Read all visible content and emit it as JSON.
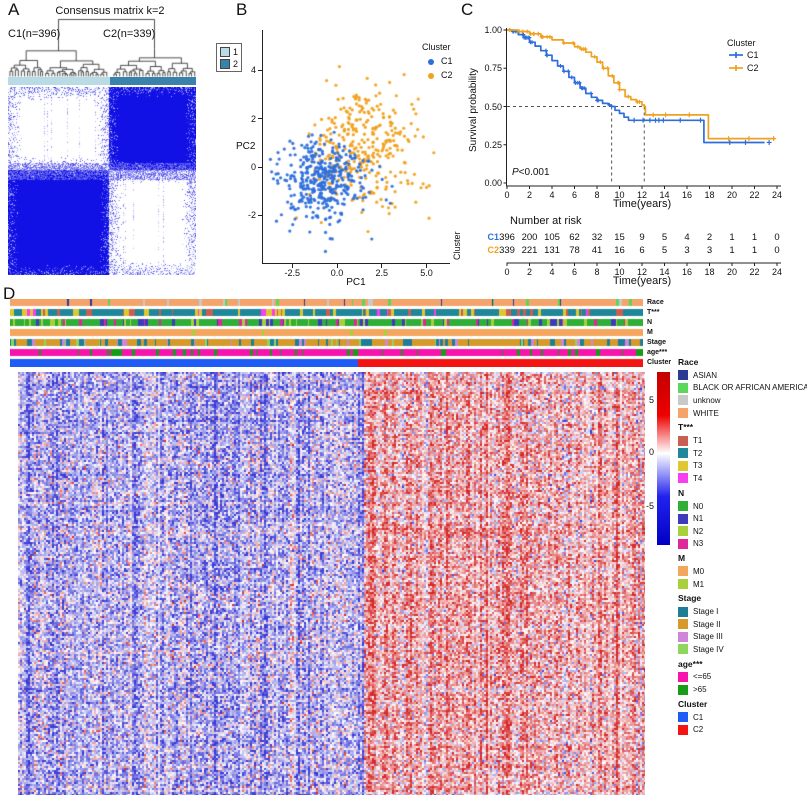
{
  "panelA": {
    "letter": "A",
    "title": "Consensus matrix k=2",
    "c1_label": "C1(n=396)",
    "c2_label": "C2(n=339)",
    "legend_items": [
      {
        "label": "1",
        "color": "#b8dbe5"
      },
      {
        "label": "2",
        "color": "#3a81ac"
      }
    ]
  },
  "panelB": {
    "letter": "B"
  },
  "panelC": {
    "letter": "C"
  },
  "panelD": {
    "letter": "D"
  },
  "chart_data": [
    {
      "id": "consensus_matrix",
      "type": "heatmap",
      "title": "Consensus matrix k=2",
      "k": 2,
      "clusters": [
        {
          "name": "C1",
          "n": 396,
          "bar_color": "#b8dbe5"
        },
        {
          "name": "C2",
          "n": 339,
          "bar_color": "#3a81ac"
        }
      ],
      "legend_entries": [
        "1",
        "2"
      ],
      "consensus_color": "#1111e6",
      "layout_note": "blue consensus blocks on anti-diagonal (C2 rows top-right, C1 rows bottom-left), white elsewhere, speckled block borders"
    },
    {
      "id": "pca_scatter",
      "type": "scatter",
      "xlabel": "PC1",
      "ylabel": "PC2",
      "xlim": [
        -4.2,
        6.3
      ],
      "ylim": [
        -3.9,
        5.5
      ],
      "xticks": [
        -2.5,
        0.0,
        2.5,
        5.0
      ],
      "xtick_labels": [
        "-2.5",
        "0.0",
        "2.5",
        "5.0"
      ],
      "yticks": [
        -2,
        0,
        2,
        4
      ],
      "ytick_labels": [
        "-2",
        "0",
        "2",
        "4"
      ],
      "legend_title": "Cluster",
      "legend_position": "top-right-inside",
      "series": [
        {
          "name": "C1",
          "color": "#2e6fdb",
          "n": 396,
          "center": [
            -0.9,
            -0.5
          ],
          "sd": [
            1.25,
            0.85
          ]
        },
        {
          "name": "C2",
          "color": "#f0a11e",
          "n": 339,
          "center": [
            1.4,
            0.75
          ],
          "sd": [
            1.55,
            1.3
          ]
        }
      ]
    },
    {
      "id": "km_survival",
      "type": "line",
      "xlabel": "Time(years)",
      "ylabel": "Survival probability",
      "xlim": [
        0,
        24.5
      ],
      "ylim": [
        0,
        1.02
      ],
      "xticks": [
        0,
        2,
        4,
        6,
        8,
        10,
        12,
        14,
        16,
        18,
        20,
        22,
        24
      ],
      "ytick_labels": [
        "1.00",
        "0.75",
        "0.50",
        "0.25",
        "0.00"
      ],
      "yticks": [
        1.0,
        0.75,
        0.5,
        0.25,
        0.0
      ],
      "legend_title": "Cluster",
      "pvalue_italic": "P",
      "pvalue_rest": "<0.001",
      "median_guides": {
        "survival": 0.5,
        "times": [
          9.3,
          12.2
        ]
      },
      "series": [
        {
          "name": "C1",
          "color": "#2e6fdb",
          "steps": [
            [
              0,
              1
            ],
            [
              0.5,
              0.99
            ],
            [
              1,
              0.97
            ],
            [
              1.5,
              0.95
            ],
            [
              2,
              0.92
            ],
            [
              2.5,
              0.895
            ],
            [
              3,
              0.865
            ],
            [
              3.5,
              0.835
            ],
            [
              4,
              0.8
            ],
            [
              4.5,
              0.765
            ],
            [
              5,
              0.73
            ],
            [
              5.5,
              0.69
            ],
            [
              6,
              0.655
            ],
            [
              6.5,
              0.62
            ],
            [
              7,
              0.585
            ],
            [
              7.5,
              0.56
            ],
            [
              8,
              0.54
            ],
            [
              8.5,
              0.52
            ],
            [
              9,
              0.51
            ],
            [
              9.3,
              0.5
            ],
            [
              9.6,
              0.475
            ],
            [
              10,
              0.455
            ],
            [
              10.4,
              0.43
            ],
            [
              10.8,
              0.41
            ],
            [
              17.4,
              0.41
            ],
            [
              17.5,
              0.265
            ],
            [
              22.9,
              0.265
            ]
          ],
          "censor_times": [
            11.3,
            12.1,
            12.7,
            13.2,
            13.5,
            13.9,
            15.4,
            17.2,
            19.8,
            21.2,
            23.3
          ]
        },
        {
          "name": "C2",
          "color": "#f0a11e",
          "steps": [
            [
              0,
              1
            ],
            [
              1,
              0.99
            ],
            [
              2,
              0.975
            ],
            [
              3,
              0.955
            ],
            [
              4,
              0.935
            ],
            [
              5,
              0.915
            ],
            [
              6,
              0.89
            ],
            [
              6.5,
              0.875
            ],
            [
              7,
              0.855
            ],
            [
              7.5,
              0.825
            ],
            [
              8,
              0.79
            ],
            [
              8.5,
              0.75
            ],
            [
              9,
              0.7
            ],
            [
              9.5,
              0.655
            ],
            [
              10,
              0.61
            ],
            [
              10.5,
              0.565
            ],
            [
              11,
              0.545
            ],
            [
              11.5,
              0.53
            ],
            [
              12,
              0.51
            ],
            [
              12.2,
              0.5
            ],
            [
              12.3,
              0.445
            ],
            [
              17.8,
              0.445
            ],
            [
              17.9,
              0.29
            ],
            [
              23.8,
              0.29
            ]
          ],
          "censor_times": [
            13.0,
            14.1,
            16.2,
            19.7,
            21.5,
            23.7
          ]
        }
      ],
      "risk_table": {
        "title": "Number at risk",
        "axis_label": "Cluster",
        "xlabel": "Time(years)",
        "time_ticks": [
          0,
          2,
          4,
          6,
          8,
          10,
          12,
          14,
          16,
          18,
          20,
          22,
          24
        ],
        "rows": [
          {
            "name": "C1",
            "color": "#2e6fdb",
            "values": [
              396,
              200,
              105,
              62,
              32,
              15,
              9,
              5,
              4,
              2,
              1,
              1,
              0
            ]
          },
          {
            "name": "C2",
            "color": "#f0a11e",
            "values": [
              339,
              221,
              131,
              78,
              41,
              16,
              6,
              5,
              3,
              3,
              1,
              1,
              0
            ]
          }
        ]
      }
    },
    {
      "id": "expression_heatmap",
      "type": "heatmap",
      "column_split": {
        "C1_fraction": 0.55
      },
      "value_colors": {
        "positive": "#d62828",
        "zero": "#ffffff",
        "negative": "#3a3ad6"
      },
      "colorbar": {
        "ticks": [
          "5",
          "0",
          "-5"
        ],
        "top_color": "#c40000",
        "mid_color": "#ffffff",
        "bottom_color": "#0000c4"
      },
      "tracks": [
        {
          "label": "Race",
          "categories": [
            {
              "name": "ASIAN",
              "color": "#2c3a96",
              "weight": 0.05
            },
            {
              "name": "BLACK OR AFRICAN AMERICAN",
              "color": "#5bd75b",
              "weight": 0.13
            },
            {
              "name": "unknow",
              "color": "#c9c9c9",
              "weight": 0.08
            },
            {
              "name": "WHITE",
              "color": "#f4a46a",
              "weight": 0.74
            }
          ]
        },
        {
          "label": "T***",
          "categories": [
            {
              "name": "T1",
              "color": "#c85f52",
              "weight": 0.2
            },
            {
              "name": "T2",
              "color": "#1f8799",
              "weight": 0.42
            },
            {
              "name": "T3",
              "color": "#ddc832",
              "weight": 0.3
            },
            {
              "name": "T4",
              "color": "#f93df0",
              "weight": 0.08
            }
          ]
        },
        {
          "label": "N",
          "categories": [
            {
              "name": "N0",
              "color": "#2fae38",
              "weight": 0.45
            },
            {
              "name": "N1",
              "color": "#3b3bbb",
              "weight": 0.22
            },
            {
              "name": "N2",
              "color": "#a8d038",
              "weight": 0.23
            },
            {
              "name": "N3",
              "color": "#e0269b",
              "weight": 0.1
            }
          ]
        },
        {
          "label": "M",
          "categories": [
            {
              "name": "M0",
              "color": "#f4a55e",
              "weight": 0.97
            },
            {
              "name": "M1",
              "color": "#a8d03c",
              "weight": 0.03
            }
          ]
        },
        {
          "label": "Stage",
          "categories": [
            {
              "name": "Stage I",
              "color": "#1f7e95",
              "weight": 0.28
            },
            {
              "name": "Stage II",
              "color": "#d59a2b",
              "weight": 0.42
            },
            {
              "name": "Stage III",
              "color": "#cf86d8",
              "weight": 0.18
            },
            {
              "name": "Stage IV",
              "color": "#8fd55e",
              "weight": 0.12
            }
          ]
        },
        {
          "label": "age***",
          "categories": [
            {
              "name": "<=65",
              "color": "#f714ad",
              "weight": 0.62
            },
            {
              "name": ">65",
              "color": "#169c16",
              "weight": 0.38
            }
          ]
        },
        {
          "label": "Cluster",
          "sorted": true,
          "categories": [
            {
              "name": "C1",
              "color": "#1e5cf5",
              "weight": 0.55
            },
            {
              "name": "C2",
              "color": "#f51414",
              "weight": 0.45
            }
          ]
        }
      ]
    }
  ]
}
